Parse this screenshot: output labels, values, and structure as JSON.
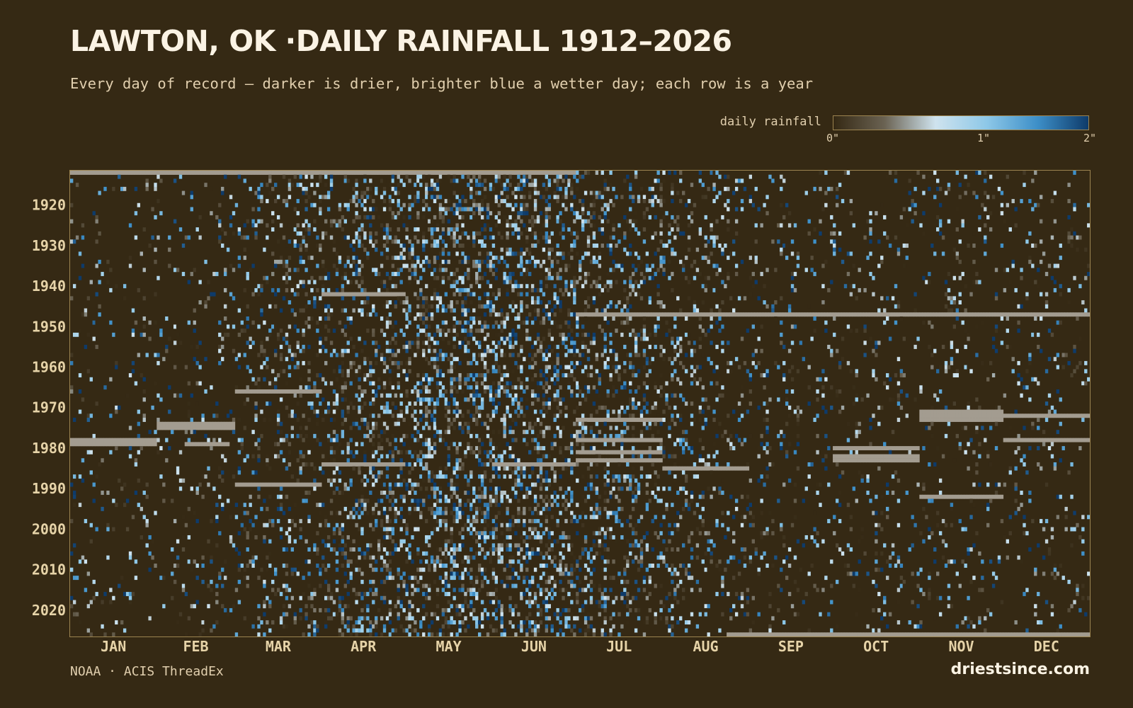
{
  "chart_data": {
    "type": "heatmap",
    "title": "LAWTON, OK ·DAILY RAINFALL 1912–2026",
    "subtitle": "Every day of record — darker is drier, brighter blue a wetter day; each row is a year",
    "x_axis": {
      "categories": [
        "JAN",
        "FEB",
        "MAR",
        "APR",
        "MAY",
        "JUN",
        "JUL",
        "AUG",
        "SEP",
        "OCT",
        "NOV",
        "DEC"
      ],
      "unit": "day of year"
    },
    "y_axis": {
      "tick_labels": [
        "1920",
        "1930",
        "1940",
        "1950",
        "1960",
        "1970",
        "1980",
        "1990",
        "2000",
        "2010",
        "2020"
      ],
      "range": [
        1912,
        2026
      ]
    },
    "color_scale": {
      "label": "daily rainfall",
      "tick_labels": [
        "0\"",
        "1\"",
        "2\""
      ],
      "domain": [
        0,
        2
      ],
      "colors": [
        "#352914",
        "#6a6252",
        "#cfe3ee",
        "#8ec8e8",
        "#3d8fc8",
        "#0e3b6a"
      ],
      "missing_color": "#a39c90"
    },
    "missing_periods": [
      {
        "year_from": 1912,
        "year_to": 1912,
        "day_from": 1,
        "day_to": 181
      },
      {
        "year_from": 1978,
        "year_to": 1979,
        "day_from": 1,
        "day_to": 31
      },
      {
        "year_from": 1974,
        "year_to": 1975,
        "day_from": 32,
        "day_to": 59
      },
      {
        "year_from": 1979,
        "year_to": 1979,
        "day_from": 42,
        "day_to": 57
      },
      {
        "year_from": 1966,
        "year_to": 1966,
        "day_from": 60,
        "day_to": 90
      },
      {
        "year_from": 1989,
        "year_to": 1989,
        "day_from": 60,
        "day_to": 90
      },
      {
        "year_from": 1942,
        "year_to": 1942,
        "day_from": 91,
        "day_to": 120
      },
      {
        "year_from": 1984,
        "year_to": 1984,
        "day_from": 91,
        "day_to": 120
      },
      {
        "year_from": 1984,
        "year_to": 1984,
        "day_from": 152,
        "day_to": 181
      },
      {
        "year_from": 1947,
        "year_to": 1947,
        "day_from": 182,
        "day_to": 365
      },
      {
        "year_from": 1973,
        "year_to": 1973,
        "day_from": 182,
        "day_to": 212
      },
      {
        "year_from": 1978,
        "year_to": 1978,
        "day_from": 182,
        "day_to": 212
      },
      {
        "year_from": 1981,
        "year_to": 1981,
        "day_from": 182,
        "day_to": 212
      },
      {
        "year_from": 1983,
        "year_to": 1983,
        "day_from": 182,
        "day_to": 212
      },
      {
        "year_from": 1985,
        "year_to": 1985,
        "day_from": 213,
        "day_to": 243
      },
      {
        "year_from": 2026,
        "year_to": 2026,
        "day_from": 236,
        "day_to": 365
      },
      {
        "year_from": 1980,
        "year_to": 1980,
        "day_from": 274,
        "day_to": 304
      },
      {
        "year_from": 1982,
        "year_to": 1983,
        "day_from": 274,
        "day_to": 304
      },
      {
        "year_from": 1971,
        "year_to": 1973,
        "day_from": 305,
        "day_to": 334
      },
      {
        "year_from": 1992,
        "year_to": 1992,
        "day_from": 305,
        "day_to": 334
      },
      {
        "year_from": 1972,
        "year_to": 1972,
        "day_from": 335,
        "day_to": 365
      },
      {
        "year_from": 1978,
        "year_to": 1978,
        "day_from": 335,
        "day_to": 365
      }
    ],
    "grid": false
  },
  "footer": {
    "source": "NOAA · ACIS ThreadEx",
    "brand": "driestsince.com"
  }
}
